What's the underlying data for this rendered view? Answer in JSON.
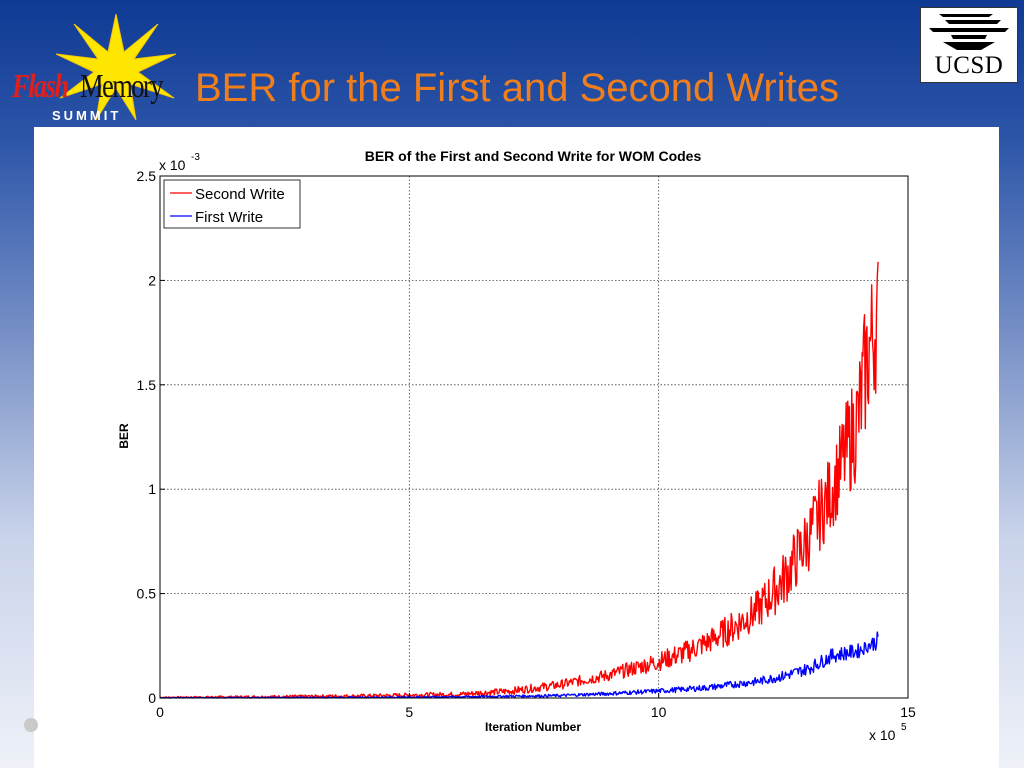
{
  "slide": {
    "title": "BER for the First and Second Writes",
    "logo_left": {
      "flash": "Flash",
      "memory": "Memory",
      "summit": "SUMMIT"
    },
    "logo_right": {
      "text": "UCSD"
    }
  },
  "colors": {
    "title": "#f07e1b",
    "second_write": "#ff0000",
    "first_write": "#0000ff",
    "grid": "#444444"
  },
  "chart_data": {
    "type": "line",
    "title": "BER of the First and Second Write for WOM Codes",
    "xlabel": "Iteration Number",
    "ylabel": "BER",
    "x_multiplier": "x 10",
    "x_multiplier_exp": "5",
    "y_multiplier": "x 10",
    "y_multiplier_exp": "-3",
    "xlim": [
      0,
      15
    ],
    "ylim": [
      0,
      2.5
    ],
    "x_ticks": [
      "0",
      "5",
      "10",
      "15"
    ],
    "y_ticks": [
      "0",
      "0.5",
      "1",
      "1.5",
      "2",
      "2.5"
    ],
    "grid": true,
    "legend_position": "top-left",
    "series": [
      {
        "name": "Second Write",
        "color": "#ff0000",
        "x": [
          0,
          2,
          4,
          6,
          7,
          8,
          9,
          10,
          10.5,
          11,
          11.5,
          12,
          12.5,
          13,
          13.5,
          14,
          14.2,
          14.4
        ],
        "low": [
          0,
          0,
          0.002,
          0.006,
          0.015,
          0.04,
          0.08,
          0.13,
          0.16,
          0.21,
          0.26,
          0.33,
          0.43,
          0.6,
          0.82,
          1.05,
          1.3,
          1.5
        ],
        "high": [
          0.006,
          0.012,
          0.018,
          0.03,
          0.05,
          0.085,
          0.14,
          0.22,
          0.27,
          0.33,
          0.42,
          0.52,
          0.7,
          0.93,
          1.2,
          1.62,
          2.0,
          2.15
        ]
      },
      {
        "name": "First Write",
        "color": "#0000ff",
        "x": [
          0,
          4,
          6,
          8,
          9,
          10,
          11,
          12,
          12.5,
          13,
          13.5,
          14,
          14.2,
          14.4
        ],
        "low": [
          0,
          0,
          0.002,
          0.005,
          0.012,
          0.022,
          0.035,
          0.06,
          0.08,
          0.11,
          0.17,
          0.19,
          0.22,
          0.23
        ],
        "high": [
          0.002,
          0.006,
          0.01,
          0.018,
          0.03,
          0.045,
          0.065,
          0.1,
          0.13,
          0.17,
          0.24,
          0.26,
          0.28,
          0.32
        ]
      }
    ]
  }
}
